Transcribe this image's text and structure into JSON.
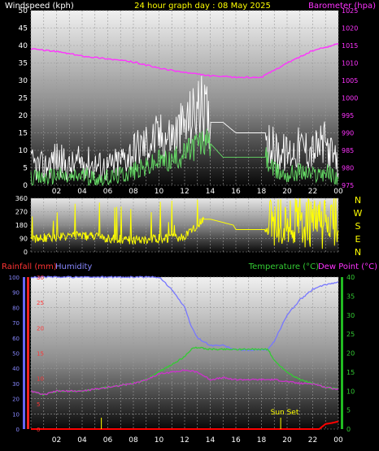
{
  "header": {
    "left_label": "Windspeed (kph)",
    "title": "24 hour graph day : 08 May 2025",
    "right_label": "Barometer (hpa)"
  },
  "lower_header": {
    "rain_label": "Rainfall (mm)",
    "hum_label": "Humidity",
    "temp_label": "Temperature (°C)",
    "dew_label": "Dew Point (°C)"
  },
  "annotation": {
    "sun_set": "Sun Set"
  },
  "direction_labels": [
    "N",
    "W",
    "S",
    "E",
    "N"
  ],
  "colors": {
    "wind_gust": "#ffffff",
    "wind_avg": "#66dd66",
    "barometer": "#ff33ff",
    "wind_dir": "#ffff00",
    "temperature": "#33cc33",
    "dew_point": "#cc33cc",
    "humidity": "#7777ff",
    "rainfall": "#ff0000",
    "title": "#ffff00",
    "grid": "#9a9a9a"
  },
  "chart_data": [
    {
      "type": "line",
      "name": "wind-baro",
      "x_ticks": [
        "02",
        "04",
        "06",
        "08",
        "10",
        "12",
        "14",
        "16",
        "18",
        "20",
        "22",
        "00"
      ],
      "xlim": [
        0,
        24
      ],
      "y_left": {
        "ticks": [
          0,
          5,
          10,
          15,
          20,
          25,
          30,
          35,
          40,
          45,
          50
        ],
        "ylim": [
          0,
          50
        ]
      },
      "y_right": {
        "ticks": [
          975,
          980,
          985,
          990,
          995,
          1000,
          1005,
          1010,
          1015,
          1020,
          1025
        ],
        "ylim": [
          975,
          1025
        ]
      },
      "series": [
        {
          "key": "gust",
          "x": [
            0,
            1,
            2,
            3,
            4,
            5,
            6,
            7,
            8,
            9,
            10,
            11,
            12,
            13,
            13.5,
            14,
            15,
            16,
            17,
            18,
            18.3,
            19,
            20,
            21,
            22,
            23,
            24
          ],
          "y": [
            6,
            5,
            8,
            5,
            7,
            6,
            5,
            7,
            10,
            12,
            14,
            14,
            17,
            22,
            22,
            18,
            18,
            15,
            15,
            15,
            15,
            10,
            9,
            11,
            10,
            12,
            5
          ]
        },
        {
          "key": "avg",
          "x": [
            0,
            1,
            2,
            3,
            4,
            5,
            6,
            7,
            8,
            9,
            10,
            11,
            12,
            13,
            13.5,
            14,
            15,
            16,
            17,
            18,
            18.3,
            19,
            20,
            21,
            22,
            23,
            24
          ],
          "y": [
            2,
            2,
            3,
            2,
            3,
            2,
            2,
            3,
            4,
            5,
            7,
            7,
            9,
            12,
            12,
            12,
            8,
            8,
            8,
            8,
            8,
            4,
            3,
            4,
            3,
            4,
            2
          ]
        },
        {
          "key": "baro",
          "x": [
            0,
            2,
            4,
            6,
            8,
            10,
            12,
            14,
            16,
            18,
            20,
            22,
            24
          ],
          "y": [
            1014,
            1013.3,
            1012,
            1011.2,
            1010.3,
            1008.5,
            1007.3,
            1006.3,
            1005.9,
            1005.9,
            1010,
            1013.5,
            1015.5
          ]
        }
      ]
    },
    {
      "type": "scatter",
      "name": "wind-direction",
      "xlim": [
        0,
        24
      ],
      "y_ticks": [
        0,
        90,
        180,
        270,
        360
      ],
      "ylim": [
        0,
        360
      ],
      "series": [
        {
          "key": "dir",
          "x": [
            0,
            2,
            4,
            6,
            8,
            10,
            12,
            13.5,
            14,
            15.8,
            16,
            18,
            18.3,
            19,
            20,
            21,
            22,
            23,
            24
          ],
          "y": [
            90,
            100,
            110,
            90,
            80,
            90,
            100,
            220,
            220,
            180,
            150,
            150,
            150,
            200,
            190,
            200,
            180,
            190,
            200
          ]
        }
      ]
    },
    {
      "type": "line",
      "name": "temp-hum-rain",
      "x_ticks": [
        "02",
        "04",
        "06",
        "08",
        "10",
        "12",
        "14",
        "16",
        "18",
        "20",
        "22",
        "00"
      ],
      "xlim": [
        0,
        24
      ],
      "y_hum": {
        "ticks": [
          0,
          10,
          20,
          30,
          40,
          50,
          60,
          70,
          80,
          90,
          100
        ],
        "ylim": [
          0,
          100
        ]
      },
      "y_rain": {
        "ticks": [
          0,
          5,
          10,
          15,
          20,
          25,
          30
        ],
        "ylim": [
          0,
          30
        ]
      },
      "y_temp": {
        "ticks": [
          0,
          5,
          10,
          15,
          20,
          25,
          30,
          35,
          40
        ],
        "ylim": [
          0,
          40
        ]
      },
      "series": [
        {
          "key": "humidity",
          "x": [
            0,
            6,
            8,
            9,
            10,
            11,
            12,
            12.5,
            13,
            14,
            15,
            16,
            17,
            18,
            18.5,
            19,
            20,
            21,
            22,
            23,
            24
          ],
          "y": [
            100,
            100,
            100,
            100,
            100,
            92,
            80,
            68,
            60,
            55,
            55,
            52,
            52,
            52,
            52,
            58,
            75,
            85,
            92,
            95,
            97
          ]
        },
        {
          "key": "temperature",
          "x": [
            0,
            1,
            2,
            3,
            4,
            5,
            6,
            7,
            8,
            9,
            10,
            11,
            12,
            12.5,
            13,
            14,
            15,
            16,
            17,
            18,
            18.5,
            19,
            20,
            21,
            22,
            23,
            24
          ],
          "y": [
            10,
            9,
            10,
            10,
            10,
            10.5,
            11,
            11.5,
            12,
            13,
            15,
            17,
            19,
            21,
            21.5,
            21,
            21,
            21,
            21,
            21,
            21,
            18,
            15,
            13,
            12,
            11,
            10.5
          ]
        },
        {
          "key": "dew",
          "x": [
            0,
            1,
            2,
            3,
            4,
            5,
            6,
            7,
            8,
            9,
            10,
            11,
            12,
            13,
            14,
            15,
            16,
            17,
            18,
            18.5,
            19,
            20,
            21,
            22,
            23,
            24
          ],
          "y": [
            10,
            9,
            10,
            10,
            10,
            10.5,
            11,
            11.5,
            12,
            13,
            14.5,
            15,
            15.5,
            15,
            13,
            13.5,
            13,
            13,
            13,
            13,
            13,
            12.5,
            12,
            12,
            11,
            10.5
          ]
        },
        {
          "key": "rain",
          "x": [
            0,
            22.5,
            23,
            23.5,
            24
          ],
          "y": [
            0,
            0,
            1,
            1.2,
            1.5
          ]
        }
      ],
      "events": [
        {
          "x": 19.5,
          "label_key": "sun_set"
        }
      ],
      "markers_x": [
        5.5,
        19.5
      ]
    }
  ]
}
